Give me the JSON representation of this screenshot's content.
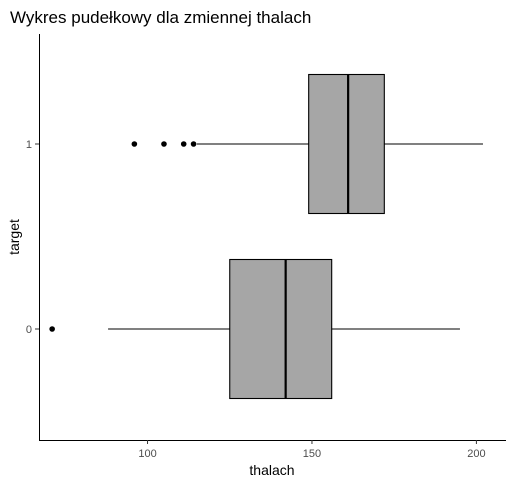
{
  "chart_data": {
    "type": "boxplot",
    "title": "Wykres pudełkowy dla zmiennej thalach",
    "xlabel": "thalach",
    "ylabel": "target",
    "orientation": "horizontal",
    "xlim": [
      67,
      209
    ],
    "x_ticks": [
      100,
      150,
      200
    ],
    "grid": false,
    "colors": {
      "box_fill": "#a6a6a6",
      "stroke": "#000000",
      "axis": "#000000",
      "tick_text": "#4d4d4d"
    },
    "categories": [
      "0",
      "1"
    ],
    "boxes": [
      {
        "category": "0",
        "whisker_low": 88,
        "q1": 125,
        "median": 142,
        "q3": 156,
        "whisker_high": 195,
        "outliers": [
          71
        ]
      },
      {
        "category": "1",
        "whisker_low": 115,
        "q1": 149,
        "median": 161,
        "q3": 172,
        "whisker_high": 202,
        "outliers": [
          96,
          105,
          111,
          114
        ]
      }
    ]
  }
}
